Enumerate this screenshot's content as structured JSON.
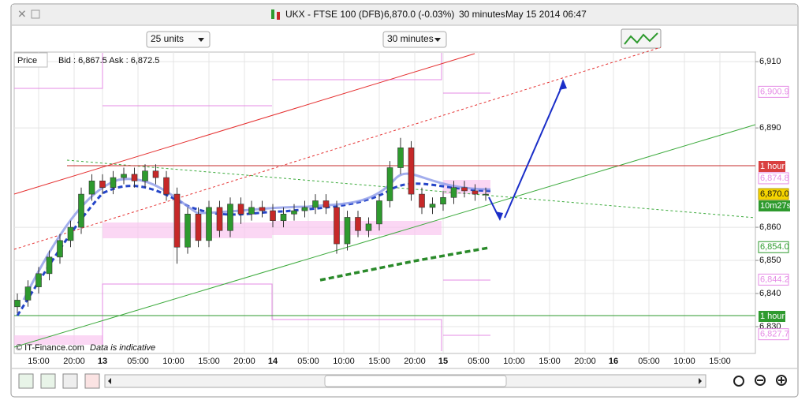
{
  "window": {
    "instrument": "UKX - FTSE 100 (DFB)",
    "quote": "6,870.0 (-0.03%)",
    "interval": "30 minutes",
    "timestamp": "May 15 2014 06:47"
  },
  "toolbar": {
    "units": "25 units",
    "interval": "30 minutes"
  },
  "panel": {
    "label": "Price",
    "bid_ask": "Bid : 6,867.5 Ask : 6,872.5",
    "copyright": "© IT-Finance.com",
    "notice": "Data is indicative"
  },
  "chart_data": {
    "type": "candlestick",
    "open": [
      6836,
      6838,
      6842,
      6846,
      6851,
      6856,
      6860,
      6870,
      6874,
      6872,
      6875,
      6876,
      6874,
      6877,
      6875,
      6870,
      6854,
      6864,
      6856,
      6866,
      6859,
      6867,
      6864,
      6866,
      6865,
      6862,
      6864,
      6865,
      6866,
      6868,
      6866,
      6855,
      6863,
      6859,
      6861,
      6868,
      6878,
      6884,
      6870,
      6866,
      6867,
      6869,
      6872,
      6871,
      6870
    ],
    "high": [
      6840,
      6844,
      6848,
      6853,
      6858,
      6862,
      6872,
      6876,
      6876,
      6877,
      6878,
      6878,
      6879,
      6879,
      6877,
      6872,
      6866,
      6866,
      6868,
      6868,
      6869,
      6869,
      6868,
      6868,
      6867,
      6866,
      6867,
      6868,
      6870,
      6870,
      6868,
      6865,
      6865,
      6863,
      6870,
      6880,
      6887,
      6886,
      6872,
      6869,
      6871,
      6874,
      6874,
      6873,
      6872
    ],
    "low": [
      6834,
      6836,
      6840,
      6844,
      6849,
      6854,
      6858,
      6868,
      6870,
      6870,
      6873,
      6872,
      6872,
      6873,
      6868,
      6849,
      6852,
      6854,
      6854,
      6857,
      6857,
      6861,
      6862,
      6863,
      6860,
      6860,
      6862,
      6863,
      6864,
      6864,
      6852,
      6853,
      6857,
      6857,
      6859,
      6866,
      6876,
      6868,
      6864,
      6864,
      6865,
      6867,
      6869,
      6868,
      6868
    ],
    "close": [
      6838,
      6842,
      6846,
      6851,
      6856,
      6860,
      6870,
      6874,
      6872,
      6875,
      6876,
      6874,
      6877,
      6875,
      6870,
      6854,
      6864,
      6856,
      6866,
      6859,
      6867,
      6864,
      6866,
      6865,
      6862,
      6864,
      6865,
      6866,
      6868,
      6866,
      6855,
      6863,
      6859,
      6861,
      6868,
      6878,
      6884,
      6870,
      6866,
      6867,
      6869,
      6872,
      6871,
      6870,
      6870
    ],
    "up_color": "#2e9a2e",
    "down_color": "#c62828",
    "ylim": [
      6821.9,
      6912.9
    ],
    "yticks": [
      {
        "value": 6910,
        "label": "6,910"
      },
      {
        "value": 6890,
        "label": "6,890"
      },
      {
        "value": 6860,
        "label": "6,860"
      },
      {
        "value": 6850,
        "label": "6,850"
      },
      {
        "value": 6840,
        "label": "6,840"
      },
      {
        "value": 6830,
        "label": "6,830"
      }
    ],
    "x_labels": [
      "15:00",
      "20:00",
      "13",
      "05:00",
      "10:00",
      "15:00",
      "20:00",
      "14",
      "05:00",
      "10:00",
      "15:00",
      "20:00",
      "15",
      "05:00",
      "10:00",
      "15:00",
      "20:00",
      "16",
      "05:00",
      "10:00",
      "15:00"
    ],
    "price_tags": [
      {
        "value": 6900.9,
        "label": "6,900.9",
        "style": "pink"
      },
      {
        "value": 6874.8,
        "label": "6,874.8",
        "style": "pink"
      },
      {
        "value": 6870.0,
        "label": "6,870.0",
        "style": "last"
      },
      {
        "value": 6854.0,
        "label": "6,854.0",
        "style": "green"
      },
      {
        "value": 6844.2,
        "label": "6,844.2",
        "style": "pink"
      },
      {
        "value": 6827.7,
        "label": "6,827.7",
        "style": "pink"
      }
    ],
    "resistance_tag": "1 hour",
    "support_tag": "1 hour",
    "countdown": "10m27s",
    "grid": true
  }
}
